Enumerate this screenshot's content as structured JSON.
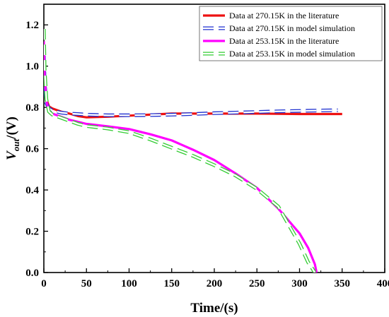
{
  "chart_data": {
    "type": "line",
    "xlabel": "Time/(s)",
    "ylabel_main": "V",
    "ylabel_sub": "out",
    "ylabel_unit": "/(V)",
    "xlim": [
      0,
      400
    ],
    "ylim": [
      0,
      1.3
    ],
    "xticks": [
      "0",
      "50",
      "100",
      "150",
      "200",
      "250",
      "300",
      "350",
      "400"
    ],
    "yticks": [
      "0.0",
      "0.2",
      "0.4",
      "0.6",
      "0.8",
      "1.0",
      "1.2"
    ],
    "grid": false,
    "legend_position": "top-right",
    "series": [
      {
        "name": "Data at 270.15K in the literature",
        "color": "#ee1111",
        "style": "solid",
        "points": [
          [
            0,
            1.08
          ],
          [
            1,
            0.95
          ],
          [
            3,
            0.84
          ],
          [
            6,
            0.805
          ],
          [
            10,
            0.795
          ],
          [
            20,
            0.78
          ],
          [
            30,
            0.77
          ],
          [
            40,
            0.758
          ],
          [
            50,
            0.752
          ],
          [
            75,
            0.755
          ],
          [
            100,
            0.76
          ],
          [
            125,
            0.765
          ],
          [
            150,
            0.77
          ],
          [
            175,
            0.77
          ],
          [
            200,
            0.77
          ],
          [
            250,
            0.77
          ],
          [
            300,
            0.768
          ],
          [
            350,
            0.768
          ]
        ]
      },
      {
        "name": "Data at 270.15K in model simulation",
        "color": "#1d2fd0",
        "style": "dashed",
        "points": [
          [
            0,
            1.05
          ],
          [
            1,
            0.92
          ],
          [
            3,
            0.82
          ],
          [
            6,
            0.795
          ],
          [
            10,
            0.785
          ],
          [
            20,
            0.775
          ],
          [
            30,
            0.77
          ],
          [
            40,
            0.768
          ],
          [
            50,
            0.765
          ],
          [
            75,
            0.762
          ],
          [
            100,
            0.762
          ],
          [
            125,
            0.763
          ],
          [
            150,
            0.765
          ],
          [
            175,
            0.768
          ],
          [
            200,
            0.772
          ],
          [
            225,
            0.775
          ],
          [
            250,
            0.778
          ],
          [
            275,
            0.781
          ],
          [
            300,
            0.783
          ],
          [
            325,
            0.785
          ],
          [
            345,
            0.786
          ]
        ]
      },
      {
        "name": "Data at 253.15K in the literature",
        "color": "#ff00ff",
        "style": "solid",
        "points": [
          [
            0,
            1.12
          ],
          [
            1,
            0.95
          ],
          [
            3,
            0.83
          ],
          [
            6,
            0.78
          ],
          [
            10,
            0.77
          ],
          [
            20,
            0.755
          ],
          [
            30,
            0.74
          ],
          [
            40,
            0.73
          ],
          [
            50,
            0.72
          ],
          [
            75,
            0.708
          ],
          [
            100,
            0.695
          ],
          [
            125,
            0.67
          ],
          [
            150,
            0.64
          ],
          [
            175,
            0.595
          ],
          [
            200,
            0.545
          ],
          [
            225,
            0.48
          ],
          [
            250,
            0.41
          ],
          [
            275,
            0.31
          ],
          [
            300,
            0.19
          ],
          [
            310,
            0.12
          ],
          [
            318,
            0.04
          ],
          [
            320,
            0.0
          ]
        ]
      },
      {
        "name": "Data at 253.15K in model simulation",
        "color": "#33cc33",
        "style": "dashed",
        "points": [
          [
            0,
            1.18
          ],
          [
            1,
            0.98
          ],
          [
            3,
            0.84
          ],
          [
            6,
            0.78
          ],
          [
            10,
            0.765
          ],
          [
            20,
            0.75
          ],
          [
            30,
            0.735
          ],
          [
            40,
            0.72
          ],
          [
            50,
            0.71
          ],
          [
            75,
            0.698
          ],
          [
            100,
            0.68
          ],
          [
            125,
            0.645
          ],
          [
            150,
            0.605
          ],
          [
            175,
            0.565
          ],
          [
            200,
            0.52
          ],
          [
            225,
            0.47
          ],
          [
            250,
            0.405
          ],
          [
            275,
            0.32
          ],
          [
            300,
            0.14
          ],
          [
            310,
            0.05
          ],
          [
            318,
            0.0
          ]
        ]
      }
    ]
  }
}
